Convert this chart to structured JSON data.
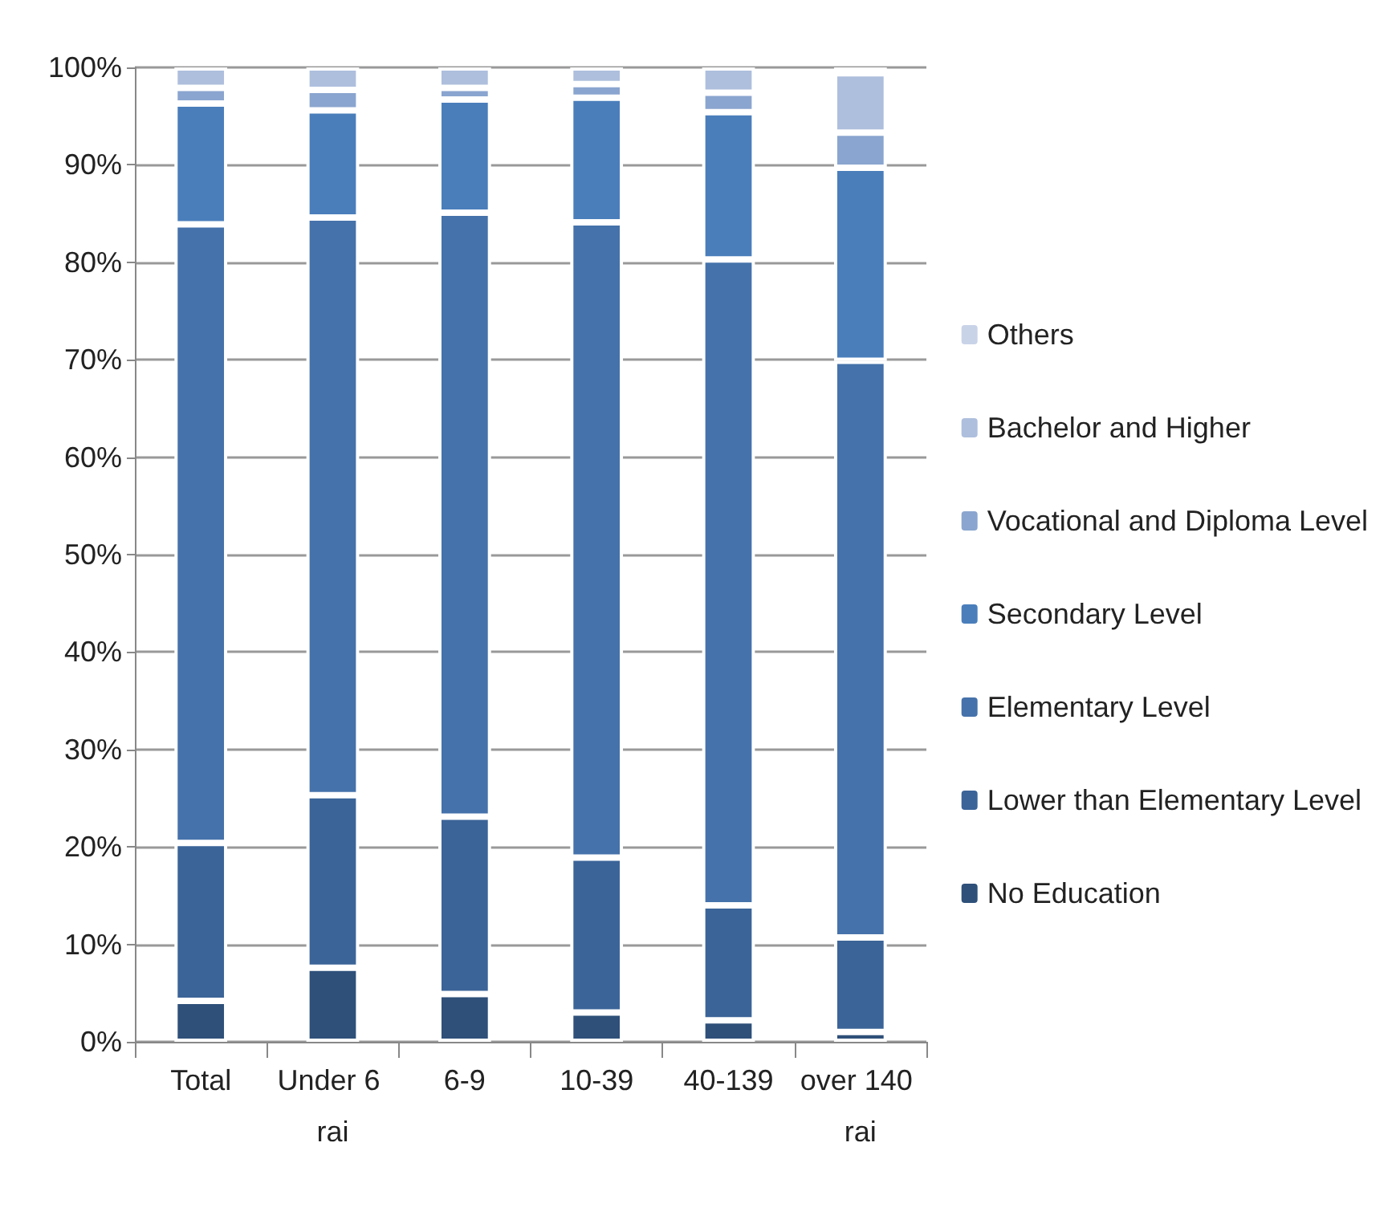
{
  "chart_data": {
    "type": "bar",
    "stacked": true,
    "categories": [
      "Total",
      "Under 6 rai",
      "6-9",
      "10-39",
      "40-139",
      "over 140 rai"
    ],
    "series": [
      {
        "name": "No Education",
        "color": "#2e5079",
        "values": [
          4.2,
          7.6,
          4.9,
          3.0,
          2.2,
          1.0
        ]
      },
      {
        "name": "Lower than Elementary Level",
        "color": "#3b6498",
        "values": [
          16.2,
          17.7,
          18.2,
          15.9,
          11.8,
          9.7
        ]
      },
      {
        "name": "Elementary Level",
        "color": "#4572aa",
        "values": [
          63.5,
          59.3,
          62.0,
          65.2,
          66.3,
          59.2
        ]
      },
      {
        "name": "Secondary Level",
        "color": "#4a7ebb",
        "values": [
          12.4,
          11.0,
          11.6,
          12.8,
          15.1,
          19.8
        ]
      },
      {
        "name": "Vocational and Diploma Level",
        "color": "#8aa5cf",
        "values": [
          1.6,
          2.1,
          1.2,
          1.4,
          2.0,
          3.6
        ]
      },
      {
        "name": "Bachelor and Higher",
        "color": "#aebfdd",
        "values": [
          2.1,
          2.3,
          2.1,
          1.7,
          2.6,
          6.1
        ]
      },
      {
        "name": "Others",
        "color": "#c9d3e8",
        "values": [
          0,
          0,
          0,
          0,
          0,
          0.6
        ]
      }
    ],
    "ylim": [
      0,
      100
    ],
    "yticks": [
      {
        "value": 0,
        "label": "0%"
      },
      {
        "value": 10,
        "label": "10%"
      },
      {
        "value": 20,
        "label": "20%"
      },
      {
        "value": 30,
        "label": "30%"
      },
      {
        "value": 40,
        "label": "40%"
      },
      {
        "value": 50,
        "label": "50%"
      },
      {
        "value": 60,
        "label": "60%"
      },
      {
        "value": 70,
        "label": "70%"
      },
      {
        "value": 80,
        "label": "80%"
      },
      {
        "value": 90,
        "label": "90%"
      },
      {
        "value": 100,
        "label": "100%"
      }
    ],
    "grid": "y",
    "legend": "right"
  }
}
